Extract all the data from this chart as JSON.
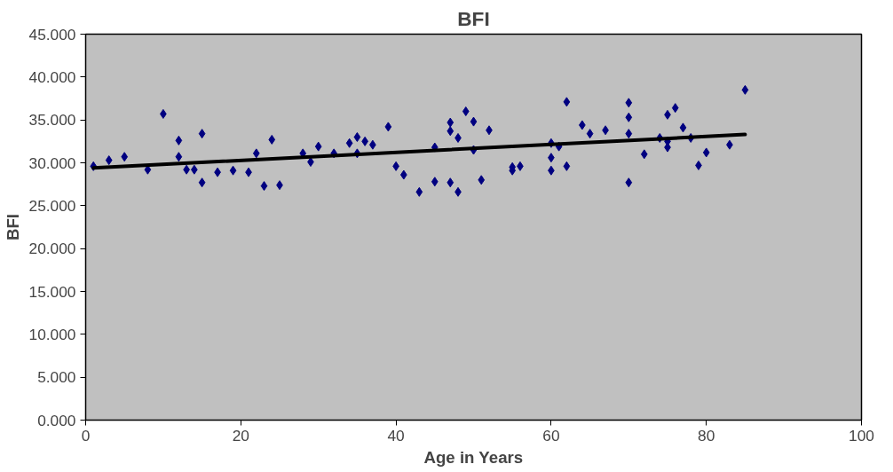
{
  "chart_data": {
    "type": "scatter",
    "title": "BFI",
    "xlabel": "Age in Years",
    "ylabel": "BFI",
    "xlim": [
      0,
      100
    ],
    "xticks": [
      0,
      20,
      40,
      60,
      80,
      100
    ],
    "ylim": [
      0,
      45
    ],
    "yticks": [
      {
        "value": 0,
        "label": "0.000"
      },
      {
        "value": 5,
        "label": "5.000"
      },
      {
        "value": 10,
        "label": "10.000"
      },
      {
        "value": 15,
        "label": "15.000"
      },
      {
        "value": 20,
        "label": "20.000"
      },
      {
        "value": 25,
        "label": "25.000"
      },
      {
        "value": 30,
        "label": "30.000"
      },
      {
        "value": 35,
        "label": "35.000"
      },
      {
        "value": 40,
        "label": "40.000"
      },
      {
        "value": 45,
        "label": "45.000"
      }
    ],
    "series": [
      {
        "color": "#000080",
        "marker": "diamond",
        "x": [
          1,
          3,
          5,
          8,
          10,
          12,
          12,
          13,
          14,
          15,
          15,
          17,
          19,
          21,
          22,
          23,
          24,
          25,
          28,
          29,
          30,
          32,
          34,
          35,
          35,
          36,
          37,
          39,
          40,
          41,
          43,
          45,
          45,
          47,
          47,
          47,
          48,
          48,
          49,
          50,
          50,
          51,
          52,
          55,
          55,
          56,
          60,
          60,
          60,
          61,
          62,
          62,
          64,
          65,
          67,
          70,
          70,
          70,
          70,
          72,
          74,
          75,
          75,
          75,
          76,
          77,
          78,
          79,
          80,
          83,
          85
        ],
        "values": [
          29.6,
          30.3,
          30.7,
          29.2,
          35.7,
          32.6,
          30.7,
          29.2,
          29.2,
          33.4,
          27.7,
          28.9,
          29.1,
          28.9,
          31.1,
          27.3,
          32.7,
          27.4,
          31.1,
          30.1,
          31.9,
          31.1,
          32.3,
          33.0,
          31.1,
          32.5,
          32.1,
          34.2,
          29.6,
          28.6,
          26.6,
          27.8,
          31.8,
          34.7,
          33.7,
          27.7,
          32.9,
          26.6,
          36.0,
          34.8,
          31.5,
          28.0,
          33.8,
          29.1,
          29.5,
          29.6,
          32.3,
          30.6,
          29.1,
          31.9,
          37.1,
          29.6,
          34.4,
          33.4,
          33.8,
          37.0,
          35.3,
          33.4,
          27.7,
          31.0,
          32.9,
          35.6,
          31.8,
          32.5,
          36.4,
          34.1,
          32.9,
          29.7,
          31.2,
          32.1,
          38.5
        ]
      },
      {
        "type": "line",
        "marker": "none",
        "color": "#000000",
        "x": [
          1,
          85
        ],
        "values": [
          29.4,
          33.3
        ]
      }
    ]
  }
}
